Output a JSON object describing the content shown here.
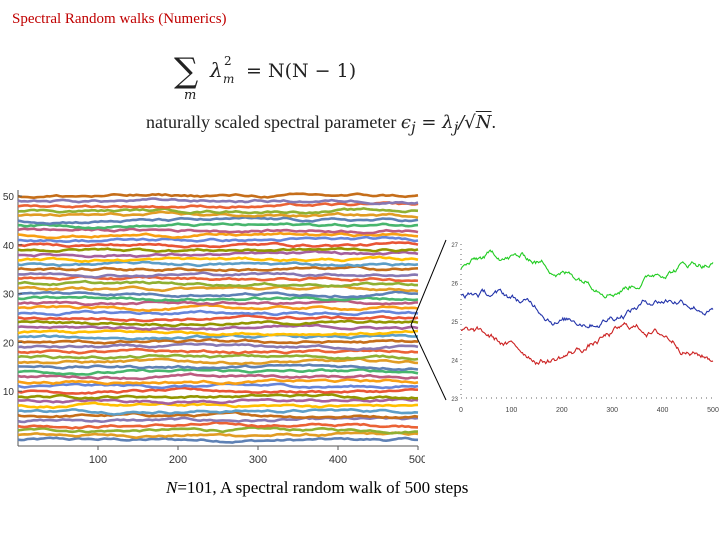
{
  "header": {
    "title": "Spectral Random walks (Numerics)"
  },
  "formula": {
    "sum_symbol": "∑",
    "sum_index": "m",
    "lhs_var": "λ",
    "lhs_sub": "m",
    "lhs_sup": "2",
    "rhs": "= N(N − 1)",
    "param_text": "naturally scaled spectral parameter ",
    "param_eps": "ϵ",
    "param_eps_sub": "j",
    "param_eq": " = λ",
    "param_lambda_sub": "j",
    "param_div": "/√",
    "param_n": "N",
    "param_end": "."
  },
  "caption": {
    "n_symbol": "N",
    "text": "=101,  A spectral  random walk of 500 steps"
  },
  "colors": {
    "palette": [
      "#5e81b5",
      "#e19c24",
      "#8fb032",
      "#eb6235",
      "#8778b3",
      "#c56e1a",
      "#5d9ec7",
      "#ffbf00",
      "#a5609d",
      "#929600",
      "#e95536",
      "#6685d9",
      "#f89f13",
      "#bc5b80",
      "#47b66d"
    ],
    "inset_top": "#22cc22",
    "inset_mid": "#2233aa",
    "inset_bottom": "#cc2222",
    "connector": "#000000"
  },
  "chart_data": [
    {
      "type": "line",
      "title": "",
      "xlabel": "",
      "ylabel": "",
      "xlim": [
        0,
        500
      ],
      "ylim": [
        0,
        50
      ],
      "x_ticks": [
        100,
        200,
        300,
        400,
        500
      ],
      "y_ticks": [
        10,
        20,
        30,
        40,
        50
      ],
      "series_count": 51,
      "steps": 500,
      "series_note": "51 random-walk eigenvalue trajectories starting at levels 0..50, one per integer level"
    },
    {
      "type": "line",
      "title": "",
      "xlabel": "",
      "ylabel": "",
      "xlim": [
        0,
        500
      ],
      "ylim": [
        23,
        27
      ],
      "x_ticks": [
        0,
        100,
        200,
        300,
        400,
        500
      ],
      "x_tick_labels": [
        "0",
        "100",
        "200",
        "300",
        "400",
        "500"
      ],
      "y_ticks": [
        23,
        24,
        25,
        26,
        27
      ],
      "y_tick_labels": [
        "23",
        "24",
        "25",
        "26",
        "27"
      ],
      "series": [
        {
          "name": "green",
          "base": 26.4,
          "amplitude": 0.25
        },
        {
          "name": "blue",
          "base": 25.4,
          "amplitude": 0.3
        },
        {
          "name": "red",
          "base": 24.4,
          "amplitude": 0.35
        }
      ]
    }
  ]
}
